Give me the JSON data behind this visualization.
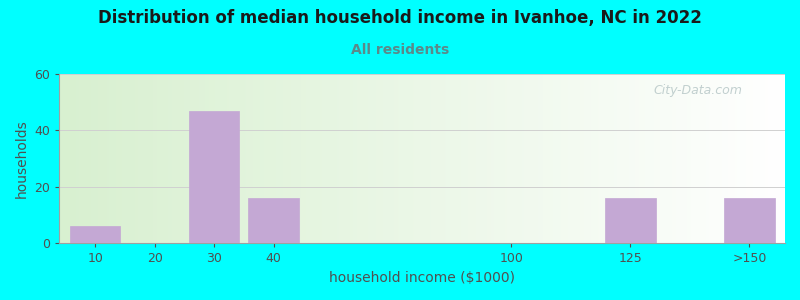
{
  "title": "Distribution of median household income in Ivanhoe, NC in 2022",
  "subtitle": "All residents",
  "xlabel": "household income ($1000)",
  "ylabel": "households",
  "background_color": "#00FFFF",
  "plot_bg_left": "#d8f0d0",
  "plot_bg_right": "#ffffff",
  "bar_color": "#C4A8D4",
  "categories": [
    "10",
    "20",
    "30",
    "40",
    "100",
    "125",
    ">150"
  ],
  "x_positions": [
    0,
    1,
    2,
    3,
    7,
    9,
    11
  ],
  "values": [
    6,
    0,
    47,
    16,
    0,
    16,
    16
  ],
  "ylim": [
    0,
    60
  ],
  "yticks": [
    0,
    20,
    40,
    60
  ],
  "xlim_min": -0.6,
  "xlim_max": 11.6,
  "title_color": "#1a1a1a",
  "subtitle_color": "#5a8a8a",
  "axis_label_color": "#505050",
  "tick_color": "#505050",
  "grid_color": "#d0d0d0",
  "watermark": "City-Data.com",
  "watermark_color": "#b8c8c8"
}
